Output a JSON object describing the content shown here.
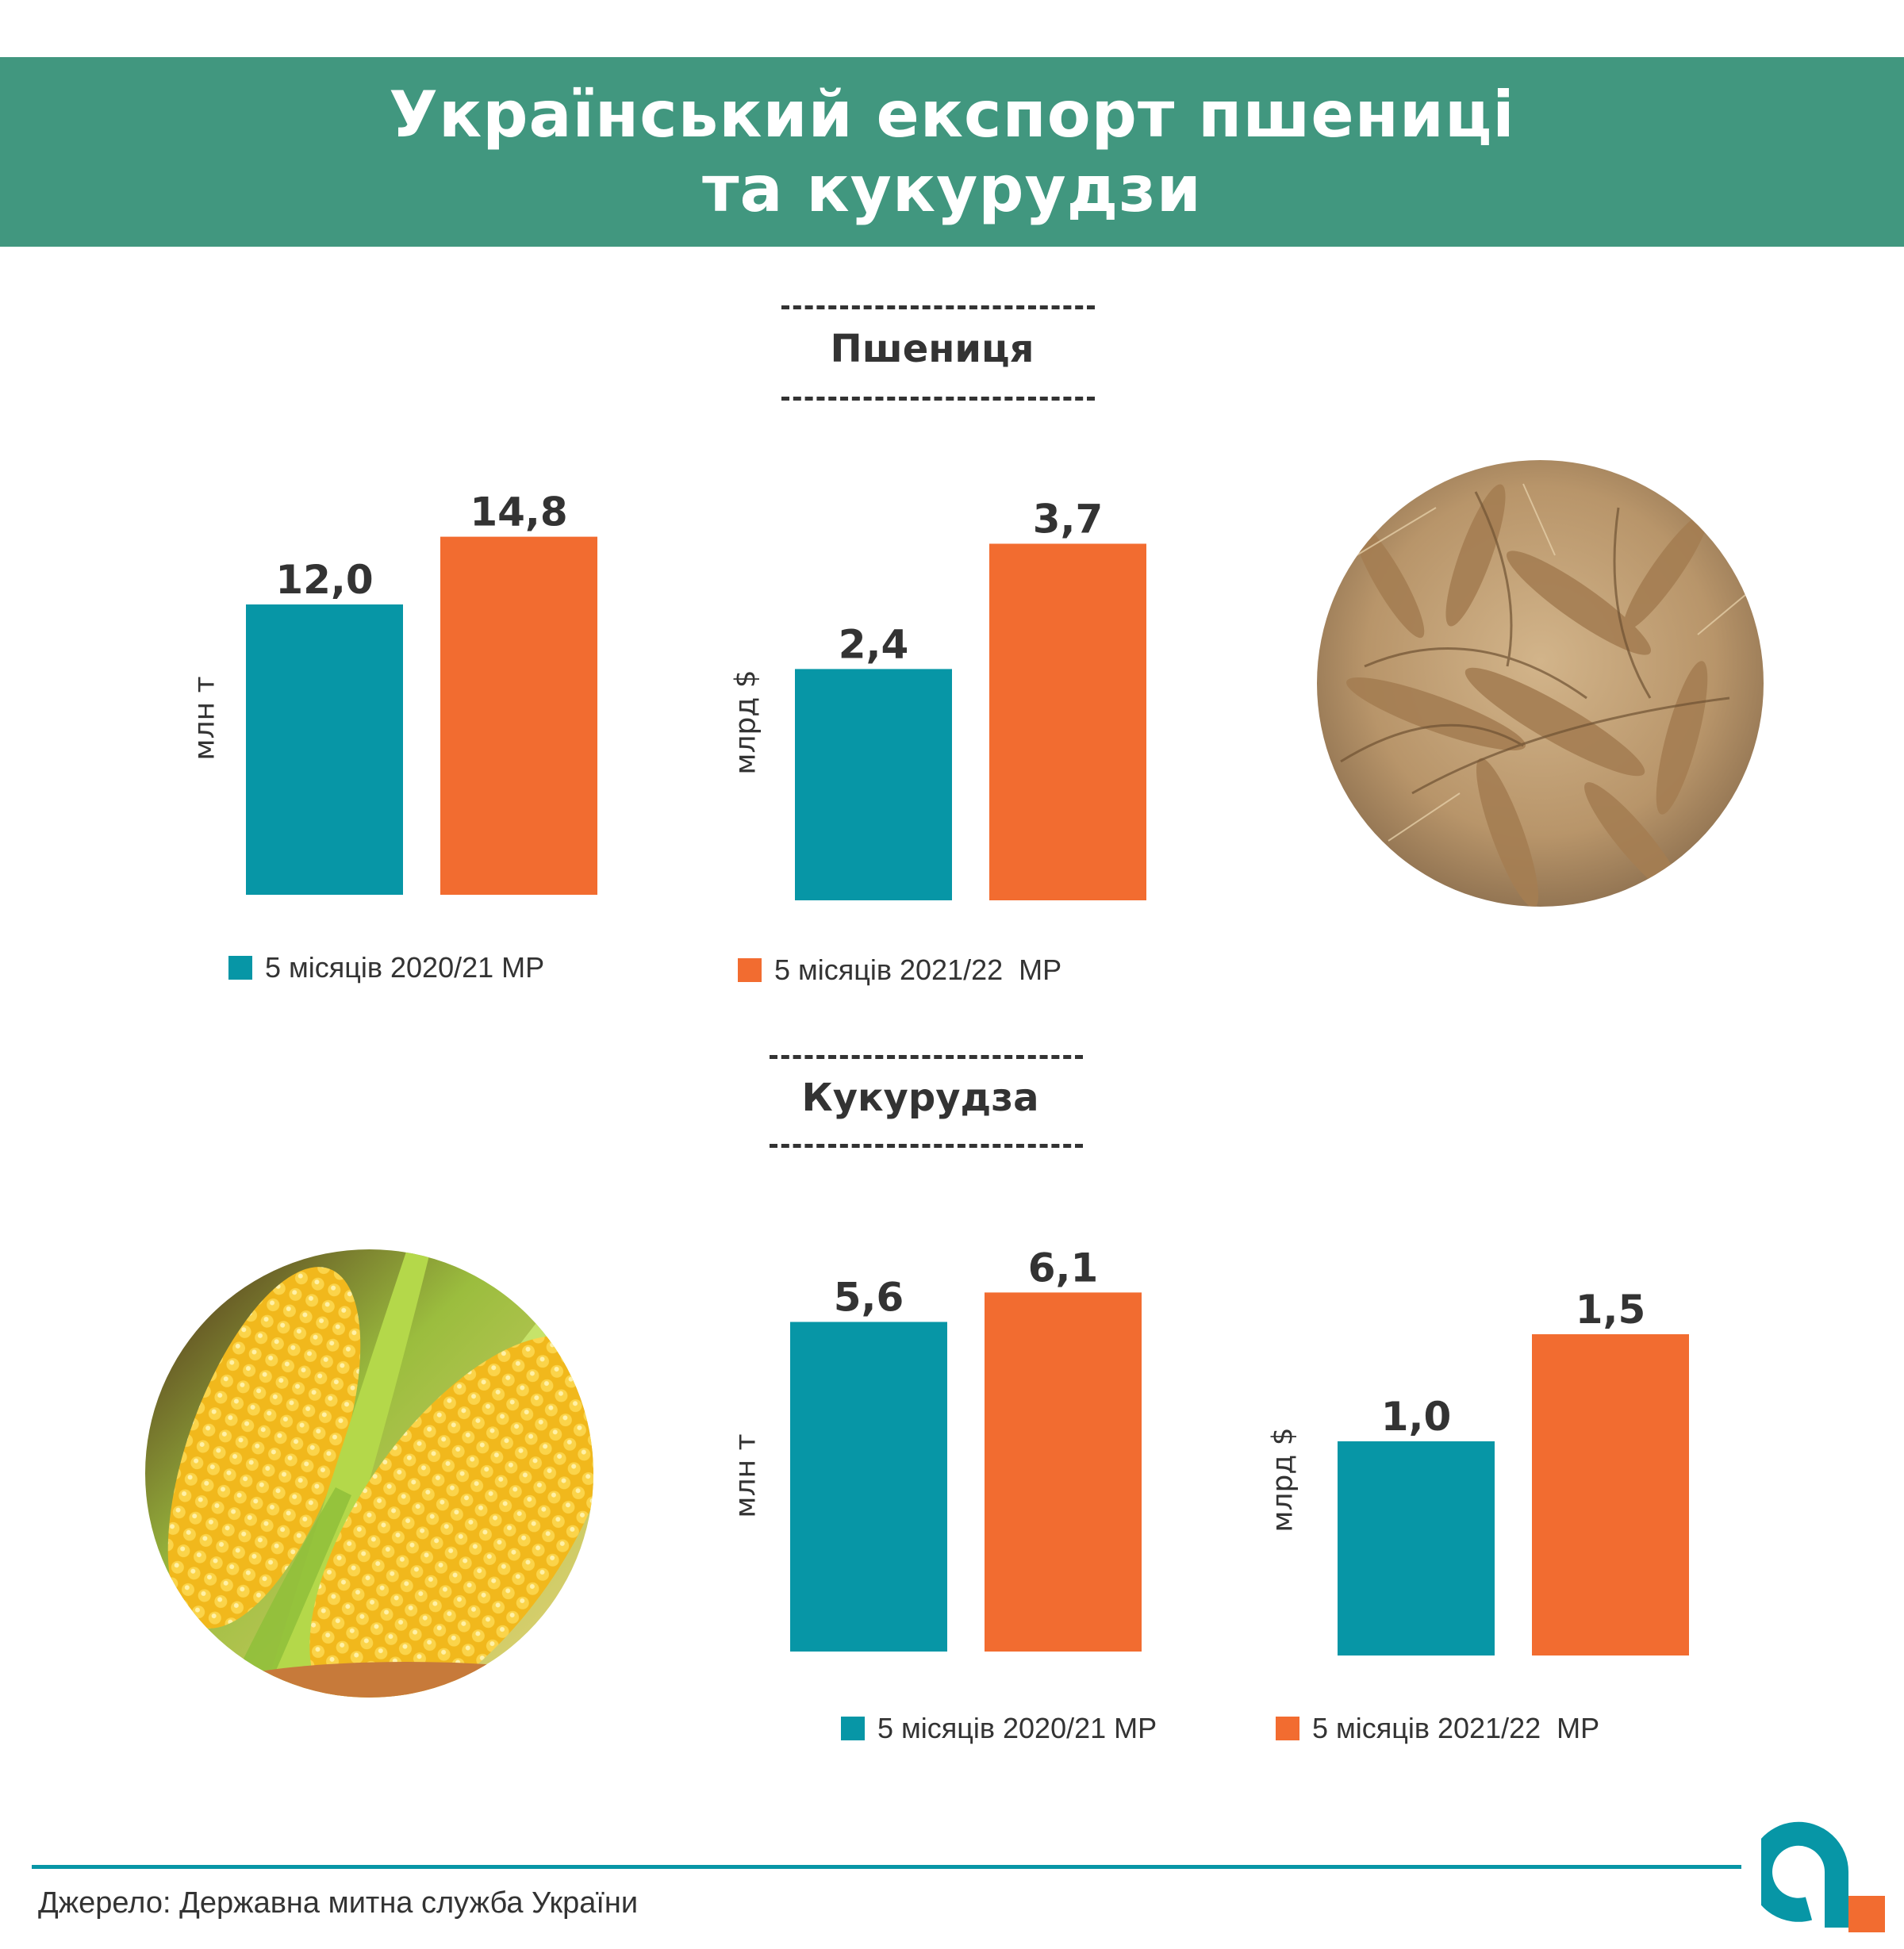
{
  "header": {
    "title_line1": "Український експорт пшениці",
    "title_line2": "та кукурудзи"
  },
  "wheat": {
    "section_title": "Пшениця",
    "legend": {
      "series_2020": "5 місяців 2020/21 МР",
      "series_2021": "5 місяців 2021/22  МР"
    }
  },
  "corn": {
    "section_title": "Кукурудза",
    "legend": {
      "series_2020": "5 місяців 2020/21 МР",
      "series_2021": "5 місяців 2021/22  МР"
    }
  },
  "source": "Джерело: Державна митна служба України",
  "colors": {
    "header_green": "#41977f",
    "teal": "#0796a6",
    "orange": "#f26c30",
    "text": "#333333"
  },
  "chart_data": [
    {
      "type": "bar",
      "id": "wheat_volume",
      "ylabel": "млн т",
      "categories": [
        "5 місяців 2020/21 МР",
        "5 місяців 2021/22  МР"
      ],
      "values": [
        12.0,
        14.8
      ],
      "value_labels": [
        "12,0",
        "14,8"
      ]
    },
    {
      "type": "bar",
      "id": "wheat_value",
      "ylabel": "млрд $",
      "categories": [
        "5 місяців 2020/21 МР",
        "5 місяців 2021/22  МР"
      ],
      "values": [
        2.4,
        3.7
      ],
      "value_labels": [
        "2,4",
        "3,7"
      ]
    },
    {
      "type": "bar",
      "id": "corn_volume",
      "ylabel": "млн т",
      "categories": [
        "5 місяців 2020/21 МР",
        "5 місяців 2021/22  МР"
      ],
      "values": [
        5.6,
        6.1
      ],
      "value_labels": [
        "5,6",
        "6,1"
      ]
    },
    {
      "type": "bar",
      "id": "corn_value",
      "ylabel": "млрд $",
      "categories": [
        "5 місяців 2020/21 МР",
        "5 місяців 2021/22  МР"
      ],
      "values": [
        1.0,
        1.5
      ],
      "value_labels": [
        "1,0",
        "1,5"
      ]
    }
  ]
}
